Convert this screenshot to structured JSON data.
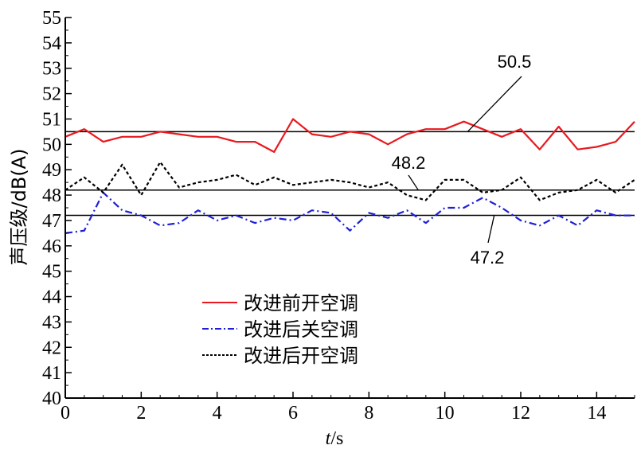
{
  "chart_data": {
    "type": "line",
    "xlabel_italic": "t",
    "xlabel_unit": "/s",
    "ylabel": "声压级/dB(A)",
    "xlim": [
      0,
      15
    ],
    "ylim": [
      40,
      55
    ],
    "xticks": [
      0,
      2,
      4,
      6,
      8,
      10,
      12,
      14
    ],
    "yticks": [
      40,
      41,
      42,
      43,
      44,
      45,
      46,
      47,
      48,
      49,
      50,
      51,
      52,
      53,
      54,
      55
    ],
    "grid": false,
    "legend_position": "lower-left",
    "x": [
      0,
      0.5,
      1,
      1.5,
      2,
      2.5,
      3,
      3.5,
      4,
      4.5,
      5,
      5.5,
      6,
      6.5,
      7,
      7.5,
      8,
      8.5,
      9,
      9.5,
      10,
      10.5,
      11,
      11.5,
      12,
      12.5,
      13,
      13.5,
      14,
      14.5,
      15
    ],
    "series": [
      {
        "name": "改进前开空调",
        "color": "#e8191f",
        "style": "solid",
        "values": [
          50.3,
          50.6,
          50.1,
          50.3,
          50.3,
          50.5,
          50.4,
          50.3,
          50.3,
          50.1,
          50.1,
          49.7,
          51.0,
          50.4,
          50.3,
          50.5,
          50.4,
          50.0,
          50.4,
          50.6,
          50.6,
          50.9,
          50.6,
          50.3,
          50.6,
          49.8,
          50.7,
          49.8,
          49.9,
          50.1,
          50.9
        ]
      },
      {
        "name": "改进后关空调",
        "color": "#1f1fd6",
        "style": "dashdot",
        "values": [
          46.5,
          46.6,
          48.1,
          47.4,
          47.2,
          46.8,
          46.9,
          47.4,
          47.0,
          47.2,
          46.9,
          47.1,
          47.0,
          47.4,
          47.3,
          46.6,
          47.3,
          47.1,
          47.4,
          46.9,
          47.5,
          47.5,
          47.9,
          47.5,
          47.0,
          46.8,
          47.2,
          46.8,
          47.4,
          47.2,
          47.2
        ]
      },
      {
        "name": "改进后开空调",
        "color": "#000000",
        "style": "dashed",
        "values": [
          48.2,
          48.7,
          48.1,
          49.2,
          48.0,
          49.3,
          48.3,
          48.5,
          48.6,
          48.8,
          48.4,
          48.7,
          48.4,
          48.5,
          48.6,
          48.5,
          48.3,
          48.5,
          48.0,
          47.8,
          48.6,
          48.6,
          48.1,
          48.2,
          48.7,
          47.8,
          48.1,
          48.2,
          48.6,
          48.1,
          48.6
        ]
      }
    ],
    "reference_lines": [
      {
        "value": 50.5,
        "label": "50.5"
      },
      {
        "value": 48.2,
        "label": "48.2"
      },
      {
        "value": 47.2,
        "label": "47.2"
      }
    ]
  }
}
